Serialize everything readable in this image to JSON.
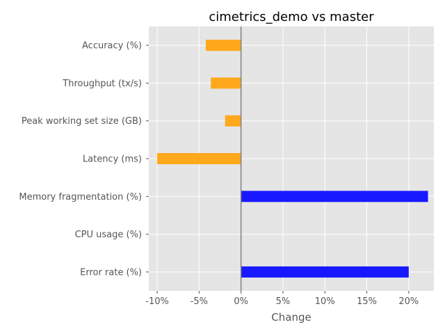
{
  "chart_data": {
    "type": "bar",
    "orientation": "horizontal",
    "title": "cimetrics_demo vs master",
    "xlabel": "Change",
    "ylabel": "",
    "categories": [
      "Accuracy (%)",
      "Throughput (tx/s)",
      "Peak working set size (GB)",
      "Latency (ms)",
      "Memory fragmentation (%)",
      "CPU usage (%)",
      "Error rate (%)"
    ],
    "values": [
      -4.2,
      -3.6,
      -1.9,
      -10.0,
      22.3,
      0.0,
      20.0
    ],
    "xlim": [
      -11,
      23
    ],
    "x_ticks": [
      -10,
      -5,
      0,
      5,
      10,
      15,
      20
    ],
    "x_tick_labels": [
      "-10%",
      "-5%",
      "0%",
      "5%",
      "10%",
      "15%",
      "20%"
    ],
    "grid": true,
    "colors": {
      "negative": "#ffa81c",
      "positive": "#1919ff",
      "background": "#e5e5e5",
      "grid": "#ffffff",
      "zero_line": "#808080"
    }
  }
}
